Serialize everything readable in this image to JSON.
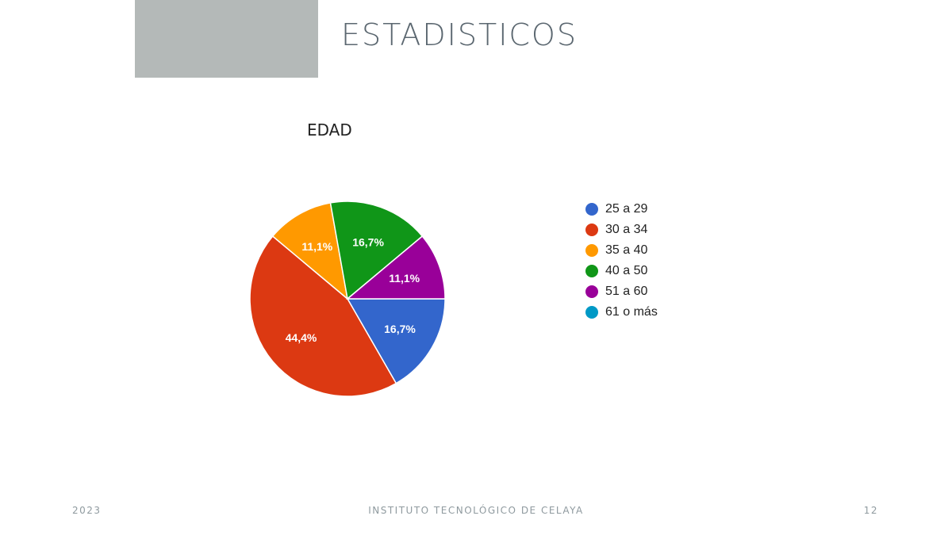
{
  "slide": {
    "title": "ESTADISTICOS",
    "footer_year": "2023",
    "footer_institution": "INSTITUTO TECNOLÓGICO DE CELAYA",
    "page_number": "12"
  },
  "chart_data": {
    "type": "pie",
    "title": "EDAD",
    "categories": [
      "25 a 29",
      "30 a 34",
      "35 a 40",
      "40 a 50",
      "51 a 60",
      "61 o más"
    ],
    "values": [
      16.7,
      44.4,
      11.1,
      16.7,
      11.1,
      0
    ],
    "labels": [
      "16,7%",
      "44,4%",
      "11,1%",
      "16,7%",
      "11,1%",
      ""
    ],
    "colors": [
      "#3366cc",
      "#dc3912",
      "#ff9900",
      "#109618",
      "#990099",
      "#0099c6"
    ],
    "legend_position": "right"
  }
}
